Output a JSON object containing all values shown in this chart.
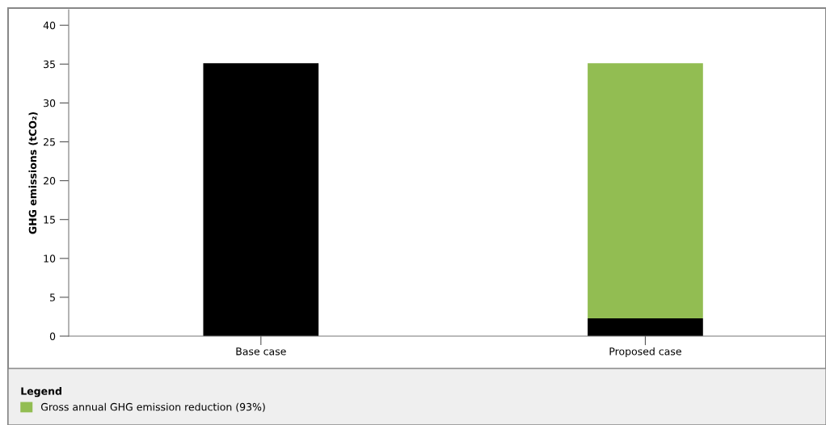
{
  "chart_data": {
    "type": "bar",
    "stacked": true,
    "ylabel": "GHG emissions (tCO₂)",
    "categories": [
      "Base case",
      "Proposed case"
    ],
    "series": [
      {
        "color": "#000000",
        "values": [
          35.1,
          2.3
        ]
      },
      {
        "name": "Gross annual GHG emission reduction (93%)",
        "color": "#92bd52",
        "values": [
          0,
          32.8
        ]
      }
    ],
    "ylim": [
      0,
      42
    ],
    "yticks": [
      0,
      5,
      10,
      15,
      20,
      25,
      30,
      35,
      40
    ],
    "grid": false,
    "legend": "bottom",
    "legend_title": "Legend"
  }
}
